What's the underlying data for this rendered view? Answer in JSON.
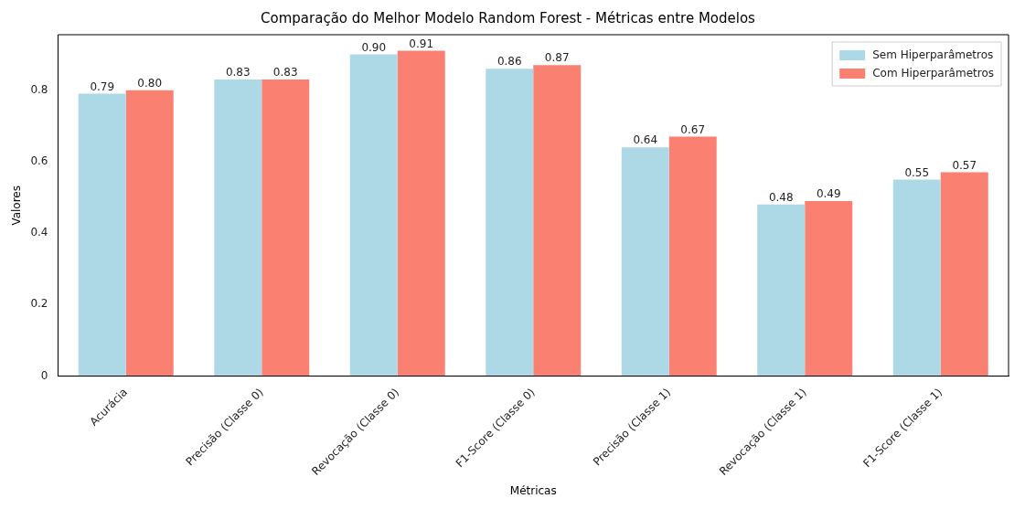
{
  "chart_data": {
    "type": "bar",
    "title": "Comparação do Melhor Modelo Random Forest - Métricas entre Modelos",
    "xlabel": "Métricas",
    "ylabel": "Valores",
    "categories": [
      "Acurácia",
      "Precisão (Classe 0)",
      "Revocação (Classe 0)",
      "F1-Score (Classe 0)",
      "Precisão (Classe 1)",
      "Revocação (Classe 1)",
      "F1-Score (Classe 1)"
    ],
    "series": [
      {
        "name": "Sem Hiperparâmetros",
        "color": "#add8e6",
        "values": [
          0.79,
          0.83,
          0.9,
          0.86,
          0.64,
          0.48,
          0.55
        ],
        "value_labels": [
          "0.79",
          "0.83",
          "0.90",
          "0.86",
          "0.64",
          "0.48",
          "0.55"
        ]
      },
      {
        "name": "Com Hiperparâmetros",
        "color": "#fa8072",
        "values": [
          0.8,
          0.83,
          0.91,
          0.87,
          0.67,
          0.49,
          0.57
        ],
        "value_labels": [
          "0.80",
          "0.83",
          "0.91",
          "0.87",
          "0.67",
          "0.49",
          "0.57"
        ]
      }
    ],
    "ylim": [
      0,
      0.955
    ],
    "yticks": [
      0,
      0.2,
      0.4,
      0.6,
      0.8
    ],
    "grid": false,
    "legend": "top right"
  }
}
